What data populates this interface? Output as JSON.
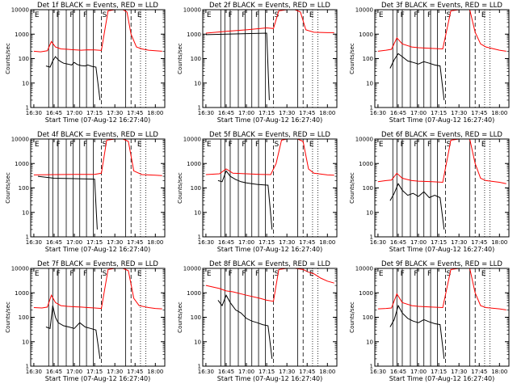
{
  "chart_data": {
    "type": "line",
    "shared": {
      "x_ticks": [
        "16:30",
        "16:45",
        "17:00",
        "17:15",
        "17:30",
        "17:45",
        "18:00"
      ],
      "x_range": [
        "16:27:40",
        "18:07:00"
      ],
      "x_label": "Start Time (07-Aug-12 16:27:40)",
      "y_label": "Counts/sec",
      "y_scale": "log",
      "y_range": [
        1,
        10000
      ],
      "y_ticks": [
        "1",
        "10",
        "100",
        "1000",
        "10000"
      ],
      "event_color": "#000000",
      "lld_color": "#ff0000",
      "solid_lines": [
        "16:41",
        "16:44",
        "16:48",
        "16:54",
        "16:59",
        "17:04",
        "17:09",
        "17:14",
        "17:38"
      ],
      "dashed_lines": [
        "17:20",
        "17:42"
      ],
      "dotted_lines": [
        "17:49",
        "17:53"
      ],
      "flags": [
        {
          "label": "E",
          "time": "16:30"
        },
        {
          "label": "F",
          "time": "16:46"
        },
        {
          "label": "F",
          "time": "16:56"
        },
        {
          "label": "F",
          "time": "17:06"
        },
        {
          "label": "S",
          "time": "17:20"
        },
        {
          "label": "E",
          "time": "17:46"
        }
      ]
    },
    "panels": [
      {
        "title": "Det 1f BLACK = Events, RED = LLD",
        "events": {
          "x": [
            "16:39",
            "16:42",
            "16:44",
            "16:46",
            "16:48",
            "16:50",
            "16:52",
            "16:55",
            "16:58",
            "17:00",
            "17:02",
            "17:05",
            "17:08",
            "17:10",
            "17:13",
            "17:16",
            "17:19"
          ],
          "y": [
            50,
            45,
            80,
            120,
            90,
            75,
            65,
            60,
            55,
            70,
            58,
            52,
            50,
            55,
            48,
            45,
            2
          ]
        },
        "lld": {
          "x": [
            "16:30",
            "16:35",
            "16:40",
            "16:43",
            "16:46",
            "16:50",
            "16:55",
            "17:00",
            "17:05",
            "17:10",
            "17:15",
            "17:20",
            "17:25",
            "17:30",
            "17:36",
            "17:39",
            "17:42",
            "17:46",
            "17:50",
            "17:55",
            "18:00",
            "18:05"
          ],
          "y": [
            200,
            190,
            210,
            500,
            300,
            250,
            240,
            230,
            220,
            230,
            225,
            215,
            9000,
            10000,
            10000,
            8000,
            1000,
            300,
            250,
            220,
            210,
            200
          ]
        }
      },
      {
        "title": "Det 2f BLACK = Events, RED = LLD",
        "events": {
          "x": [
            "16:30",
            "16:45",
            "17:00",
            "17:15",
            "17:17"
          ],
          "y": [
            950,
            1000,
            1050,
            1100,
            2
          ]
        },
        "lld": {
          "x": [
            "16:30",
            "16:45",
            "17:00",
            "17:15",
            "17:20",
            "17:24",
            "17:30",
            "17:36",
            "17:40",
            "17:44",
            "17:50",
            "18:00",
            "18:05"
          ],
          "y": [
            1100,
            1300,
            1500,
            1800,
            1700,
            9000,
            10000,
            10000,
            8000,
            1500,
            1200,
            1150,
            1150
          ]
        }
      },
      {
        "title": "Det 3f BLACK = Events, RED = LLD",
        "events": {
          "x": [
            "16:39",
            "16:42",
            "16:45",
            "16:48",
            "16:52",
            "16:56",
            "17:00",
            "17:04",
            "17:08",
            "17:12",
            "17:16",
            "17:19"
          ],
          "y": [
            40,
            90,
            160,
            120,
            80,
            70,
            60,
            75,
            65,
            55,
            50,
            2
          ]
        },
        "lld": {
          "x": [
            "16:30",
            "16:36",
            "16:40",
            "16:44",
            "16:48",
            "16:55",
            "17:00",
            "17:10",
            "17:18",
            "17:24",
            "17:30",
            "17:38",
            "17:42",
            "17:46",
            "17:50",
            "18:00",
            "18:05"
          ],
          "y": [
            200,
            220,
            240,
            700,
            400,
            300,
            280,
            260,
            250,
            9000,
            10000,
            10000,
            1200,
            400,
            300,
            220,
            200
          ]
        }
      },
      {
        "title": "Det 4f BLACK = Events, RED = LLD",
        "events": {
          "x": [
            "16:33",
            "16:45",
            "17:00",
            "17:15",
            "17:17"
          ],
          "y": [
            300,
            250,
            240,
            230,
            2
          ]
        },
        "lld": {
          "x": [
            "16:30",
            "16:45",
            "17:00",
            "17:15",
            "17:20",
            "17:24",
            "17:30",
            "17:36",
            "17:40",
            "17:44",
            "17:50",
            "18:00",
            "18:05"
          ],
          "y": [
            340,
            350,
            360,
            360,
            400,
            9000,
            10000,
            10000,
            8000,
            500,
            350,
            330,
            320
          ]
        }
      },
      {
        "title": "Det 5f BLACK = Events, RED = LLD",
        "events": {
          "x": [
            "16:39",
            "16:42",
            "16:45",
            "16:48",
            "16:52",
            "16:56",
            "17:00",
            "17:04",
            "17:08",
            "17:12",
            "17:16",
            "17:19"
          ],
          "y": [
            200,
            180,
            500,
            300,
            220,
            180,
            160,
            150,
            140,
            135,
            130,
            2
          ]
        },
        "lld": {
          "x": [
            "16:30",
            "16:40",
            "16:45",
            "16:50",
            "17:00",
            "17:10",
            "17:18",
            "17:22",
            "17:26",
            "17:30",
            "17:38",
            "17:42",
            "17:46",
            "17:50",
            "18:00",
            "18:05"
          ],
          "y": [
            350,
            380,
            600,
            400,
            380,
            360,
            350,
            1000,
            9000,
            10000,
            10000,
            8000,
            600,
            400,
            340,
            330
          ]
        }
      },
      {
        "title": "Det 6f BLACK = Events, RED = LLD",
        "events": {
          "x": [
            "16:39",
            "16:42",
            "16:45",
            "16:48",
            "16:52",
            "16:56",
            "17:00",
            "17:04",
            "17:08",
            "17:12",
            "17:16",
            "17:19"
          ],
          "y": [
            30,
            60,
            150,
            80,
            50,
            60,
            45,
            70,
            40,
            50,
            40,
            2
          ]
        },
        "lld": {
          "x": [
            "16:30",
            "16:36",
            "16:40",
            "16:44",
            "16:48",
            "16:55",
            "17:00",
            "17:10",
            "17:18",
            "17:24",
            "17:30",
            "17:38",
            "17:42",
            "17:46",
            "17:50",
            "18:00",
            "18:05"
          ],
          "y": [
            180,
            200,
            210,
            400,
            250,
            200,
            190,
            180,
            170,
            9000,
            10000,
            10000,
            1000,
            250,
            200,
            170,
            150
          ]
        }
      },
      {
        "title": "Det 7f BLACK = Events, RED = LLD",
        "events": {
          "x": [
            "16:39",
            "16:42",
            "16:44",
            "16:46",
            "16:48",
            "16:52",
            "16:56",
            "17:00",
            "17:04",
            "17:08",
            "17:12",
            "17:16",
            "17:19"
          ],
          "y": [
            40,
            35,
            300,
            100,
            60,
            45,
            40,
            35,
            60,
            40,
            35,
            30,
            2
          ]
        },
        "lld": {
          "x": [
            "16:30",
            "16:36",
            "16:40",
            "16:43",
            "16:46",
            "16:50",
            "16:55",
            "17:00",
            "17:05",
            "17:10",
            "17:15",
            "17:20",
            "17:25",
            "17:30",
            "17:36",
            "17:40",
            "17:44",
            "17:48",
            "17:55",
            "18:00",
            "18:05"
          ],
          "y": [
            250,
            240,
            260,
            800,
            400,
            300,
            280,
            270,
            260,
            250,
            240,
            230,
            9000,
            10000,
            10000,
            8000,
            600,
            300,
            250,
            230,
            220
          ]
        }
      },
      {
        "title": "Det 8f BLACK = Events, RED = LLD",
        "events": {
          "x": [
            "16:39",
            "16:42",
            "16:45",
            "16:48",
            "16:52",
            "16:56",
            "17:00",
            "17:04",
            "17:08",
            "17:12",
            "17:16",
            "17:19"
          ],
          "y": [
            500,
            300,
            800,
            400,
            200,
            150,
            90,
            70,
            60,
            50,
            45,
            2
          ]
        },
        "lld": {
          "x": [
            "16:30",
            "16:40",
            "16:45",
            "16:50",
            "17:00",
            "17:10",
            "17:15",
            "17:20",
            "17:24",
            "17:30",
            "17:36",
            "17:42",
            "17:46",
            "17:50",
            "17:55",
            "18:00",
            "18:05"
          ],
          "y": [
            2000,
            1500,
            1200,
            1100,
            800,
            600,
            500,
            450,
            9000,
            10000,
            10000,
            9000,
            7000,
            6000,
            4000,
            3000,
            2500
          ]
        }
      },
      {
        "title": "Det 9f BLACK = Events, RED = LLD",
        "events": {
          "x": [
            "16:39",
            "16:42",
            "16:45",
            "16:48",
            "16:52",
            "16:56",
            "17:00",
            "17:04",
            "17:08",
            "17:12",
            "17:16",
            "17:19"
          ],
          "y": [
            40,
            80,
            300,
            150,
            90,
            70,
            60,
            80,
            65,
            55,
            50,
            2
          ]
        },
        "lld": {
          "x": [
            "16:30",
            "16:36",
            "16:40",
            "16:44",
            "16:48",
            "16:55",
            "17:00",
            "17:10",
            "17:18",
            "17:24",
            "17:30",
            "17:38",
            "17:42",
            "17:46",
            "17:50",
            "18:00",
            "18:05"
          ],
          "y": [
            220,
            230,
            240,
            900,
            400,
            300,
            280,
            260,
            250,
            9000,
            10000,
            10000,
            1000,
            300,
            250,
            220,
            200
          ]
        }
      }
    ]
  }
}
